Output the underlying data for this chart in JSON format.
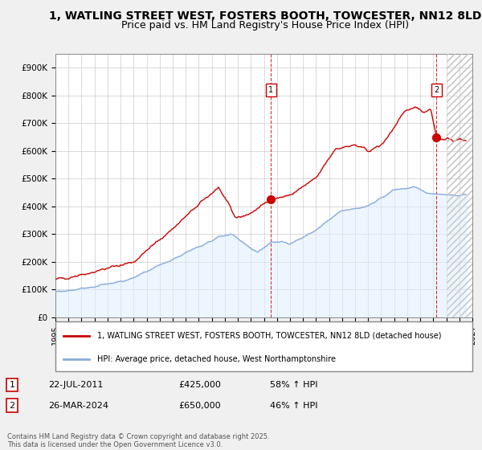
{
  "title1": "1, WATLING STREET WEST, FOSTERS BOOTH, TOWCESTER, NN12 8LD",
  "title2": "Price paid vs. HM Land Registry's House Price Index (HPI)",
  "ylabel_ticks": [
    "£0",
    "£100K",
    "£200K",
    "£300K",
    "£400K",
    "£500K",
    "£600K",
    "£700K",
    "£800K",
    "£900K"
  ],
  "ytick_values": [
    0,
    100000,
    200000,
    300000,
    400000,
    500000,
    600000,
    700000,
    800000,
    900000
  ],
  "ylim": [
    0,
    950000
  ],
  "xlim_start": 1995.0,
  "xlim_end": 2027.0,
  "background_color": "#f0f0f0",
  "plot_bg_color": "#ffffff",
  "red_line_color": "#cc0000",
  "blue_line_color": "#88aadd",
  "blue_fill_color": "#ddeeff",
  "vline1_x": 2011.55,
  "vline2_x": 2024.25,
  "marker1_x": 2011.55,
  "marker1_y": 425000,
  "marker2_x": 2024.25,
  "marker2_y": 650000,
  "legend_line1": "1, WATLING STREET WEST, FOSTERS BOOTH, TOWCESTER, NN12 8LD (detached house)",
  "legend_line2": "HPI: Average price, detached house, West Northamptonshire",
  "annotation1_label": "1",
  "annotation2_label": "2",
  "table_row1": [
    "1",
    "22-JUL-2011",
    "£425,000",
    "58% ↑ HPI"
  ],
  "table_row2": [
    "2",
    "26-MAR-2024",
    "£650,000",
    "46% ↑ HPI"
  ],
  "footer_text": "Contains HM Land Registry data © Crown copyright and database right 2025.\nThis data is licensed under the Open Government Licence v3.0.",
  "grid_color": "#cccccc",
  "title_fontsize": 10,
  "subtitle_fontsize": 9,
  "tick_fontsize": 7.5
}
